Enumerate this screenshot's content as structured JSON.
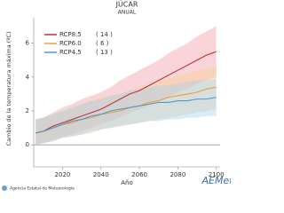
{
  "chart_data": {
    "type": "line",
    "title": "JÚCAR",
    "subtitle": "ANUAL",
    "xlabel": "Año",
    "ylabel": "Cambio de la temperatura máxima (ºC)",
    "x": [
      2006,
      2010,
      2015,
      2020,
      2025,
      2030,
      2035,
      2040,
      2045,
      2050,
      2055,
      2060,
      2065,
      2070,
      2075,
      2080,
      2085,
      2090,
      2095,
      2100
    ],
    "series": [
      {
        "name": "RCP8.5",
        "models_label": "( 14 )",
        "color": "#c0343c",
        "band_color": "#f2a0a8",
        "values": [
          0.7,
          0.8,
          1.1,
          1.3,
          1.5,
          1.7,
          1.9,
          2.1,
          2.4,
          2.7,
          3.0,
          3.2,
          3.5,
          3.8,
          4.1,
          4.4,
          4.7,
          5.0,
          5.3,
          5.5
        ],
        "lower": [
          0,
          0.1,
          0.3,
          0.5,
          0.6,
          0.8,
          1.0,
          1.2,
          1.4,
          1.6,
          1.9,
          2.1,
          2.3,
          2.6,
          2.8,
          3.1,
          3.3,
          3.6,
          3.8,
          4.0
        ],
        "upper": [
          1.5,
          1.6,
          1.9,
          2.2,
          2.4,
          2.7,
          2.9,
          3.1,
          3.4,
          3.8,
          4.1,
          4.4,
          4.7,
          5.0,
          5.4,
          5.7,
          6.0,
          6.4,
          6.7,
          7.0
        ]
      },
      {
        "name": "RCP6.0",
        "models_label": "( 6 )",
        "color": "#e8a03c",
        "band_color": "#f7d09a",
        "values": [
          0.7,
          0.8,
          1.0,
          1.2,
          1.3,
          1.5,
          1.6,
          1.8,
          1.9,
          2.0,
          2.2,
          2.3,
          2.5,
          2.6,
          2.8,
          2.9,
          3.0,
          3.1,
          3.3,
          3.4
        ],
        "lower": [
          0,
          0.1,
          0.2,
          0.4,
          0.5,
          0.6,
          0.7,
          0.9,
          1.0,
          1.1,
          1.2,
          1.3,
          1.4,
          1.5,
          1.6,
          1.7,
          1.8,
          1.9,
          2.0,
          2.1
        ],
        "upper": [
          1.5,
          1.6,
          1.8,
          2.0,
          2.2,
          2.4,
          2.6,
          2.8,
          2.9,
          3.0,
          3.2,
          3.4,
          3.6,
          3.7,
          3.9,
          4.1,
          4.2,
          4.4,
          4.5,
          4.7
        ]
      },
      {
        "name": "RCP4.5",
        "models_label": "( 13 )",
        "color": "#4a9ad0",
        "band_color": "#a8d2ee",
        "values": [
          0.7,
          0.8,
          1.0,
          1.2,
          1.4,
          1.5,
          1.7,
          1.8,
          2.0,
          2.1,
          2.2,
          2.3,
          2.4,
          2.5,
          2.5,
          2.6,
          2.6,
          2.7,
          2.7,
          2.8
        ],
        "lower": [
          0,
          0.1,
          0.2,
          0.4,
          0.5,
          0.6,
          0.8,
          0.9,
          1.0,
          1.1,
          1.2,
          1.3,
          1.4,
          1.4,
          1.5,
          1.5,
          1.6,
          1.6,
          1.7,
          1.7
        ],
        "upper": [
          1.5,
          1.6,
          1.8,
          2.0,
          2.2,
          2.4,
          2.6,
          2.7,
          2.9,
          3.0,
          3.2,
          3.3,
          3.4,
          3.5,
          3.5,
          3.6,
          3.7,
          3.8,
          3.8,
          3.9
        ]
      }
    ],
    "xlim": [
      2005,
      2102
    ],
    "ylim": [
      -1.3,
      7.5
    ],
    "xticks": [
      2020,
      2040,
      2060,
      2080,
      2100
    ],
    "yticks": [
      0,
      2,
      4,
      6
    ],
    "zero_line": true,
    "footer": "Agencia Estatal de Meteorología",
    "logo": "AEMet"
  }
}
